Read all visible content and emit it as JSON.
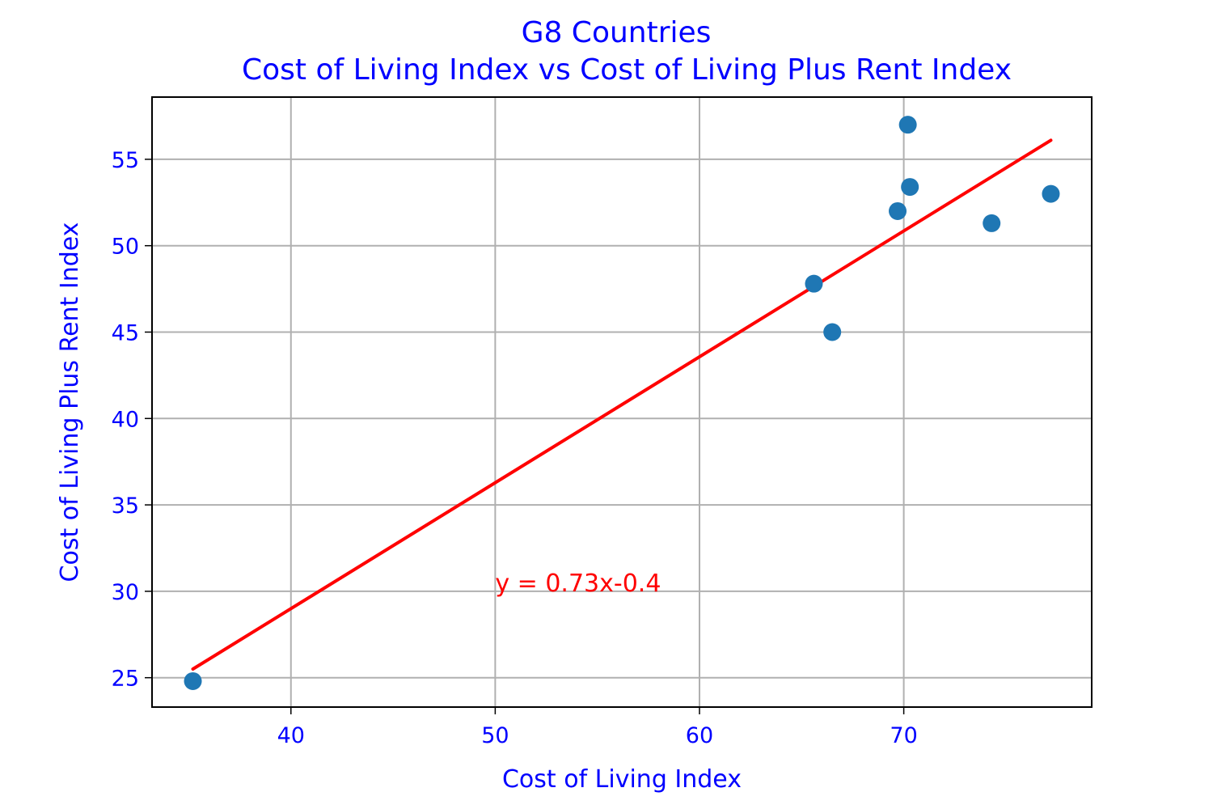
{
  "chart_data": {
    "type": "scatter",
    "title": "G8 Countries",
    "subtitle": "Cost of Living Index vs Cost of Living Plus Rent Index",
    "xlabel": "Cost of Living Index",
    "ylabel": "Cost of Living Plus Rent Index",
    "xlim": [
      33.2,
      79.2
    ],
    "ylim": [
      23.3,
      58.6
    ],
    "xticks": [
      40,
      50,
      60,
      70
    ],
    "yticks": [
      25,
      30,
      35,
      40,
      45,
      50,
      55
    ],
    "grid": true,
    "points": [
      {
        "x": 35.2,
        "y": 24.8
      },
      {
        "x": 65.6,
        "y": 47.8
      },
      {
        "x": 66.5,
        "y": 45.0
      },
      {
        "x": 69.7,
        "y": 52.0
      },
      {
        "x": 70.2,
        "y": 57.0
      },
      {
        "x": 70.3,
        "y": 53.4
      },
      {
        "x": 74.3,
        "y": 51.3
      },
      {
        "x": 77.2,
        "y": 53.0
      }
    ],
    "regression": {
      "slope": 0.73,
      "intercept": -0.4,
      "x_start": 35.2,
      "x_end": 77.2,
      "y_start": 25.5,
      "y_end": 56.1,
      "equation": "y = 0.73x-0.4",
      "color": "#ff0000"
    },
    "annotation": {
      "text": "y = 0.73x-0.4",
      "x": 50,
      "y": 30
    },
    "colors": {
      "points": "#1f77b4",
      "text": "#0000ff",
      "grid": "#b0b0b0",
      "line": "#ff0000"
    }
  }
}
